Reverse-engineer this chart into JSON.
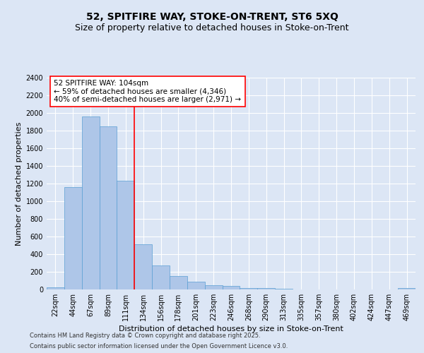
{
  "title": "52, SPITFIRE WAY, STOKE-ON-TRENT, ST6 5XQ",
  "subtitle": "Size of property relative to detached houses in Stoke-on-Trent",
  "xlabel": "Distribution of detached houses by size in Stoke-on-Trent",
  "ylabel": "Number of detached properties",
  "categories": [
    "22sqm",
    "44sqm",
    "67sqm",
    "89sqm",
    "111sqm",
    "134sqm",
    "156sqm",
    "178sqm",
    "201sqm",
    "223sqm",
    "246sqm",
    "268sqm",
    "290sqm",
    "313sqm",
    "335sqm",
    "357sqm",
    "380sqm",
    "402sqm",
    "424sqm",
    "447sqm",
    "469sqm"
  ],
  "values": [
    25,
    1160,
    1960,
    1850,
    1230,
    515,
    275,
    150,
    90,
    45,
    40,
    18,
    15,
    5,
    3,
    2,
    2,
    2,
    1,
    1,
    15
  ],
  "bar_color": "#aec6e8",
  "bar_edge_color": "#5a9fd4",
  "background_color": "#dce6f5",
  "grid_color": "#ffffff",
  "vline_x": 4.5,
  "vline_color": "red",
  "annotation_text": "52 SPITFIRE WAY: 104sqm\n← 59% of detached houses are smaller (4,346)\n40% of semi-detached houses are larger (2,971) →",
  "annotation_box_color": "white",
  "annotation_box_edge_color": "red",
  "ylim": [
    0,
    2400
  ],
  "yticks": [
    0,
    200,
    400,
    600,
    800,
    1000,
    1200,
    1400,
    1600,
    1800,
    2000,
    2200,
    2400
  ],
  "footer1": "Contains HM Land Registry data © Crown copyright and database right 2025.",
  "footer2": "Contains public sector information licensed under the Open Government Licence v3.0.",
  "title_fontsize": 10,
  "subtitle_fontsize": 9,
  "ylabel_fontsize": 8,
  "xlabel_fontsize": 8,
  "tick_fontsize": 7,
  "annotation_fontsize": 7.5,
  "footer_fontsize": 6
}
